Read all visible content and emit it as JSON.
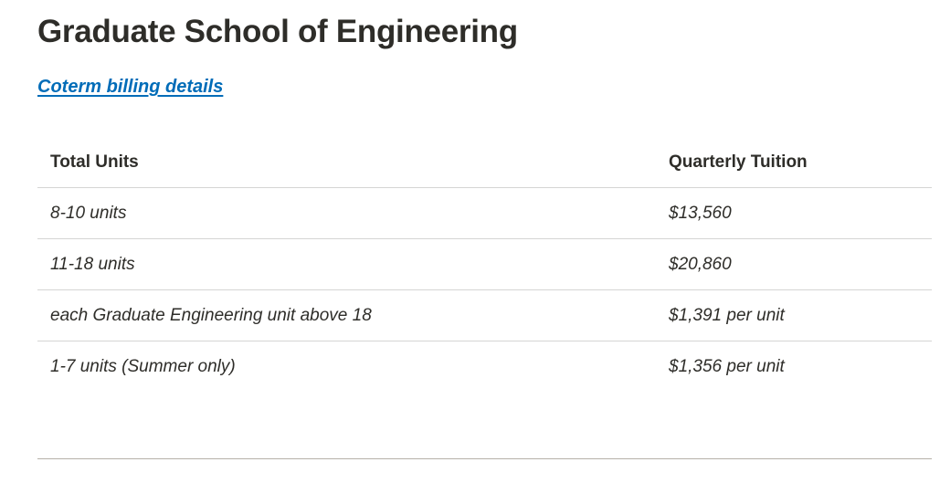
{
  "page": {
    "title": "Graduate School of Engineering",
    "link_label": "Coterm billing details"
  },
  "table": {
    "headers": [
      "Total Units",
      "Quarterly Tuition"
    ],
    "rows": [
      {
        "units": "8-10 units",
        "tuition": "$13,560"
      },
      {
        "units": "11-18 units",
        "tuition": "$20,860"
      },
      {
        "units": "each Graduate Engineering unit above 18",
        "tuition": "$1,391 per unit"
      },
      {
        "units": "1-7 units (Summer only)",
        "tuition": "$1,356 per unit"
      }
    ]
  },
  "colors": {
    "text": "#2e2d29",
    "link": "#006cb8",
    "rule": "#d5d5d4"
  }
}
